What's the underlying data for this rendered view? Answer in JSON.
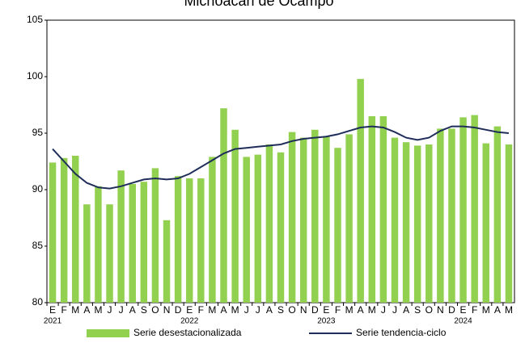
{
  "chart_data": {
    "type": "bar",
    "title": "Michoacán de Ocampo",
    "categories": [
      "E",
      "F",
      "M",
      "A",
      "M",
      "J",
      "J",
      "A",
      "S",
      "O",
      "N",
      "D",
      "E",
      "F",
      "M",
      "A",
      "M",
      "J",
      "J",
      "A",
      "S",
      "O",
      "N",
      "D",
      "E",
      "F",
      "M",
      "A",
      "M",
      "J",
      "J",
      "A",
      "S",
      "O",
      "N",
      "D",
      "E",
      "F",
      "M",
      "A",
      "M"
    ],
    "year_labels": [
      "2021",
      "2022",
      "2023",
      "2024"
    ],
    "series": [
      {
        "name": "Serie desestacionalizada",
        "type": "bar",
        "color": "#92d050",
        "values": [
          92.4,
          92.8,
          93.0,
          88.7,
          90.3,
          88.7,
          91.7,
          90.5,
          90.7,
          91.9,
          87.3,
          91.2,
          91.0,
          91.0,
          92.9,
          97.2,
          95.3,
          92.9,
          93.1,
          94.0,
          93.3,
          95.1,
          94.6,
          95.3,
          94.7,
          93.7,
          94.9,
          99.8,
          96.5,
          96.5,
          94.6,
          94.2,
          93.9,
          94.0,
          95.4,
          95.4,
          96.4,
          96.6,
          94.1,
          95.6,
          94.0
        ]
      },
      {
        "name": "Serie tendencia-ciclo",
        "type": "line",
        "color": "#1f2d5a",
        "values": [
          93.6,
          92.5,
          91.4,
          90.6,
          90.2,
          90.1,
          90.3,
          90.6,
          90.9,
          91.0,
          90.9,
          91.0,
          91.4,
          92.0,
          92.6,
          93.2,
          93.6,
          93.7,
          93.8,
          93.9,
          94.0,
          94.3,
          94.5,
          94.6,
          94.7,
          94.9,
          95.2,
          95.5,
          95.6,
          95.5,
          95.1,
          94.6,
          94.4,
          94.6,
          95.2,
          95.6,
          95.6,
          95.5,
          95.3,
          95.1,
          95.0
        ]
      }
    ],
    "ylim": [
      80,
      105
    ],
    "yticks": [
      80,
      85,
      90,
      95,
      100,
      105
    ],
    "grid": false
  }
}
